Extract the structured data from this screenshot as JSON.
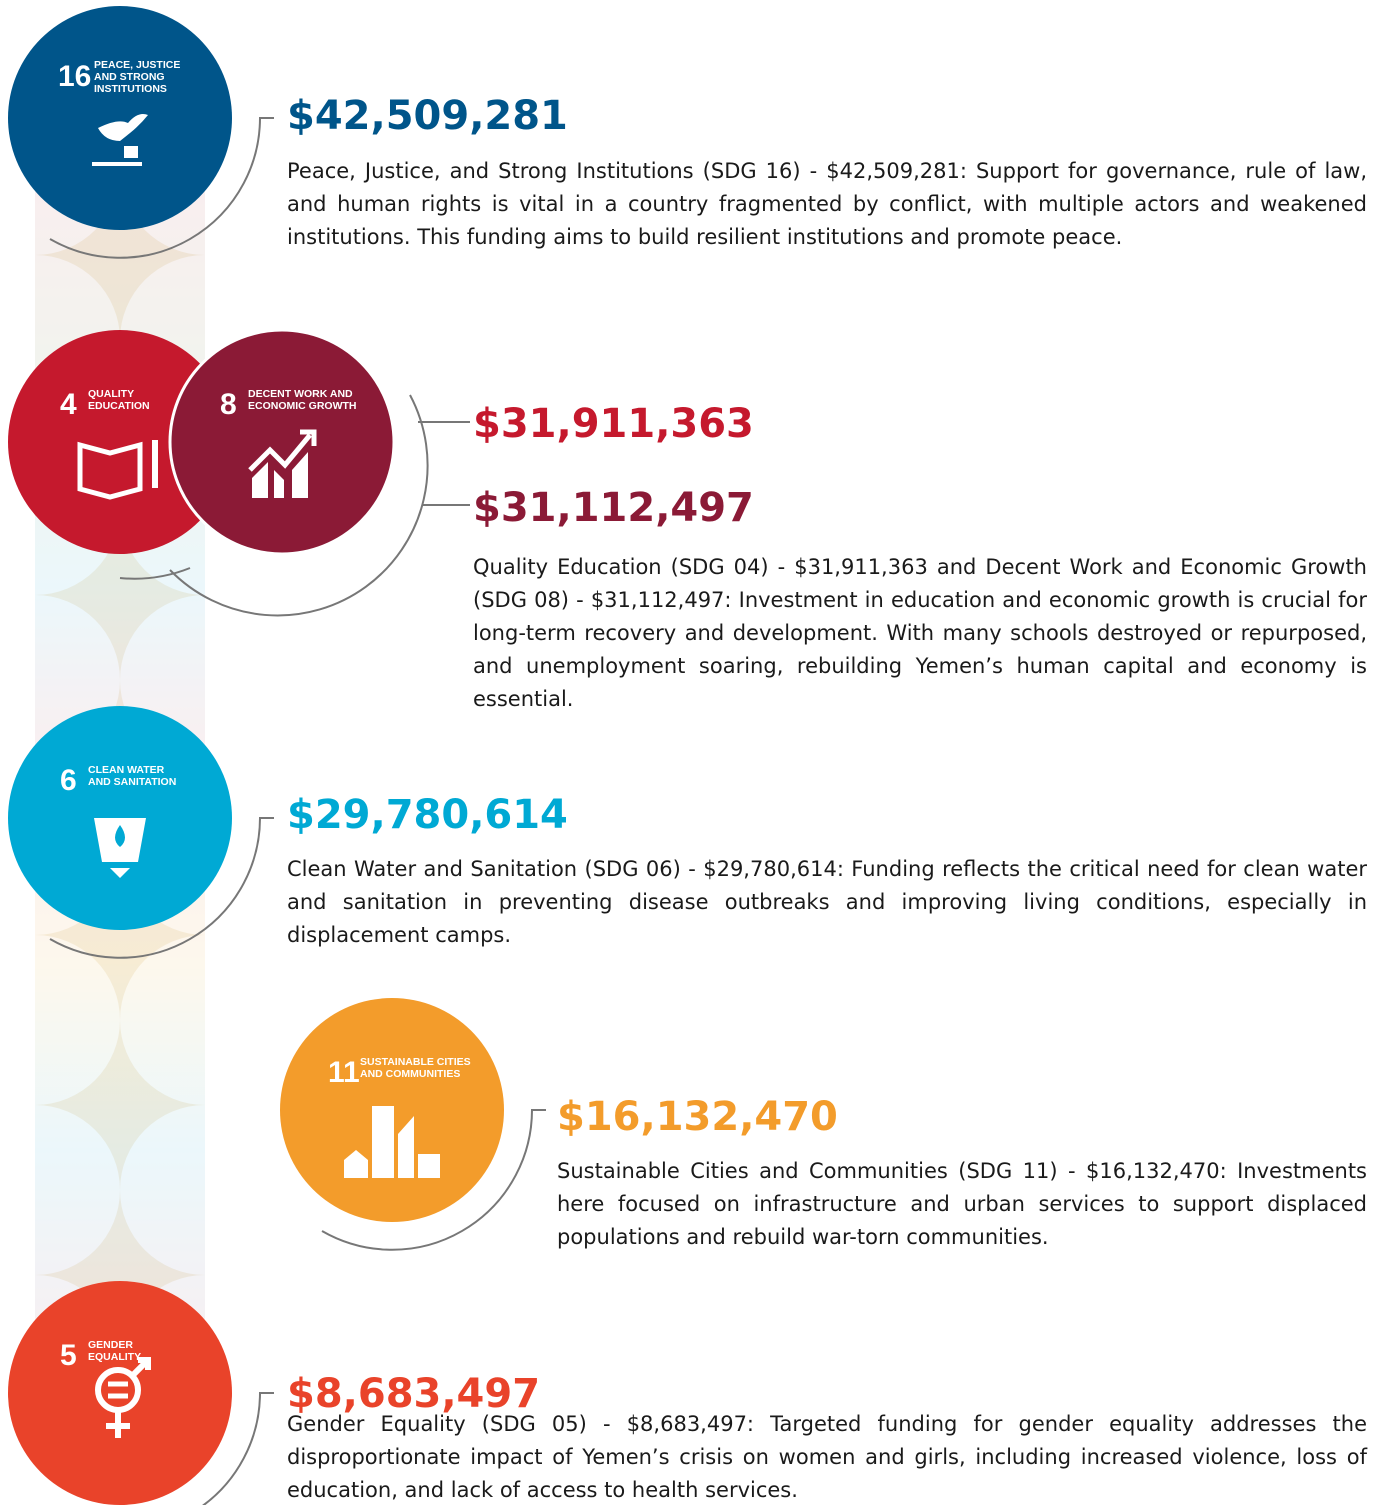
{
  "sections": [
    {
      "badges": [
        {
          "number": "16",
          "label": [
            "PEACE, JUSTICE",
            "AND STRONG",
            "INSTITUTIONS"
          ]
        }
      ],
      "amounts": [
        "$42,509,281"
      ],
      "text": "Peace, Justice, and Strong Institutions (SDG 16) - $42,509,281: Support for governance, rule of law, and human rights is vital in a country fragmented by conflict, with multiple actors and weakened institutions. This funding aims to build resilient institutions and promote peace."
    },
    {
      "badges": [
        {
          "number": "4",
          "label": [
            "QUALITY",
            "EDUCATION"
          ]
        },
        {
          "number": "8",
          "label": [
            "DECENT WORK AND",
            "ECONOMIC GROWTH"
          ]
        }
      ],
      "amounts": [
        "$31,911,363",
        "$31,112,497"
      ],
      "text": "Quality Education (SDG 04) - $31,911,363 and Decent Work and Economic Growth (SDG 08) - $31,112,497: Investment in education and economic growth is crucial for long-term recovery and development. With many schools destroyed or repurposed, and unemployment soaring, rebuilding Yemen’s human capital and economy is essential."
    },
    {
      "badges": [
        {
          "number": "6",
          "label": [
            "CLEAN WATER",
            "AND SANITATION"
          ]
        }
      ],
      "amounts": [
        "$29,780,614"
      ],
      "text": "Clean Water and Sanitation (SDG 06) - $29,780,614: Funding reflects the critical need for clean water and sanitation in preventing disease outbreaks and improving living conditions, especially in displacement camps."
    },
    {
      "badges": [
        {
          "number": "11",
          "label": [
            "SUSTAINABLE CITIES",
            "AND COMMUNITIES"
          ]
        }
      ],
      "amounts": [
        "$16,132,470"
      ],
      "text": "Sustainable Cities and Communities (SDG 11) - $16,132,470: Investments here focused on infrastructure and urban services to support displaced populations and rebuild war-torn communities."
    },
    {
      "badges": [
        {
          "number": "5",
          "label": [
            "GENDER",
            "EQUALITY"
          ]
        }
      ],
      "amounts": [
        "$8,683,497"
      ],
      "text": "Gender Equality (SDG 05) - $8,683,497: Targeted funding for gender equality addresses the disproportionate impact of Yemen’s crisis on women and girls, including increased violence, loss of education, and lack of access to health services."
    }
  ]
}
